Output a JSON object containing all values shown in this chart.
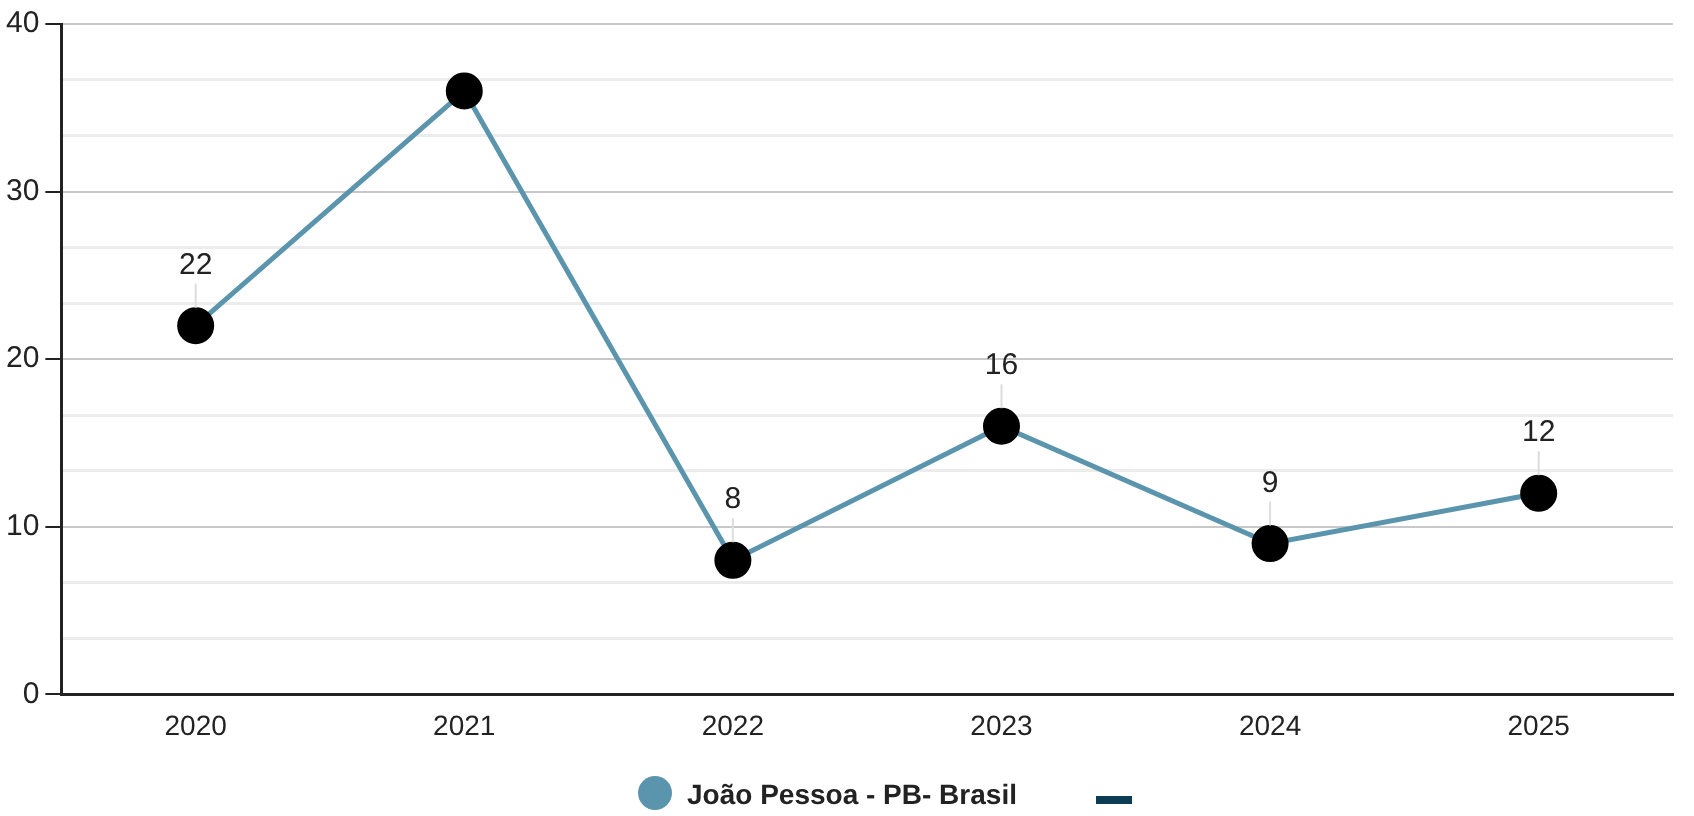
{
  "chart_data": {
    "type": "line",
    "categories": [
      "2020",
      "2021",
      "2022",
      "2023",
      "2024",
      "2025"
    ],
    "series": [
      {
        "name": "João Pessoa - PB- Brasil",
        "color": "#5b95ad",
        "values": [
          22,
          36,
          8,
          16,
          9,
          12
        ],
        "value_labels": [
          "22",
          null,
          "8",
          "16",
          "9",
          "12"
        ]
      }
    ],
    "ylim": [
      0,
      40
    ],
    "yticks": [
      0,
      {
        "value": 3.33,
        "label": null
      },
      {
        "value": 6.67,
        "label": null
      },
      10,
      {
        "value": 13.33,
        "label": null
      },
      {
        "value": 16.67,
        "label": null
      },
      20,
      {
        "value": 23.33,
        "label": null
      },
      {
        "value": 26.67,
        "label": null
      },
      30,
      {
        "value": 33.33,
        "label": null
      },
      {
        "value": 36.67,
        "label": null
      },
      40
    ],
    "grid": "y",
    "legend": "bottom",
    "marker": "circle",
    "line_style": "solid"
  }
}
